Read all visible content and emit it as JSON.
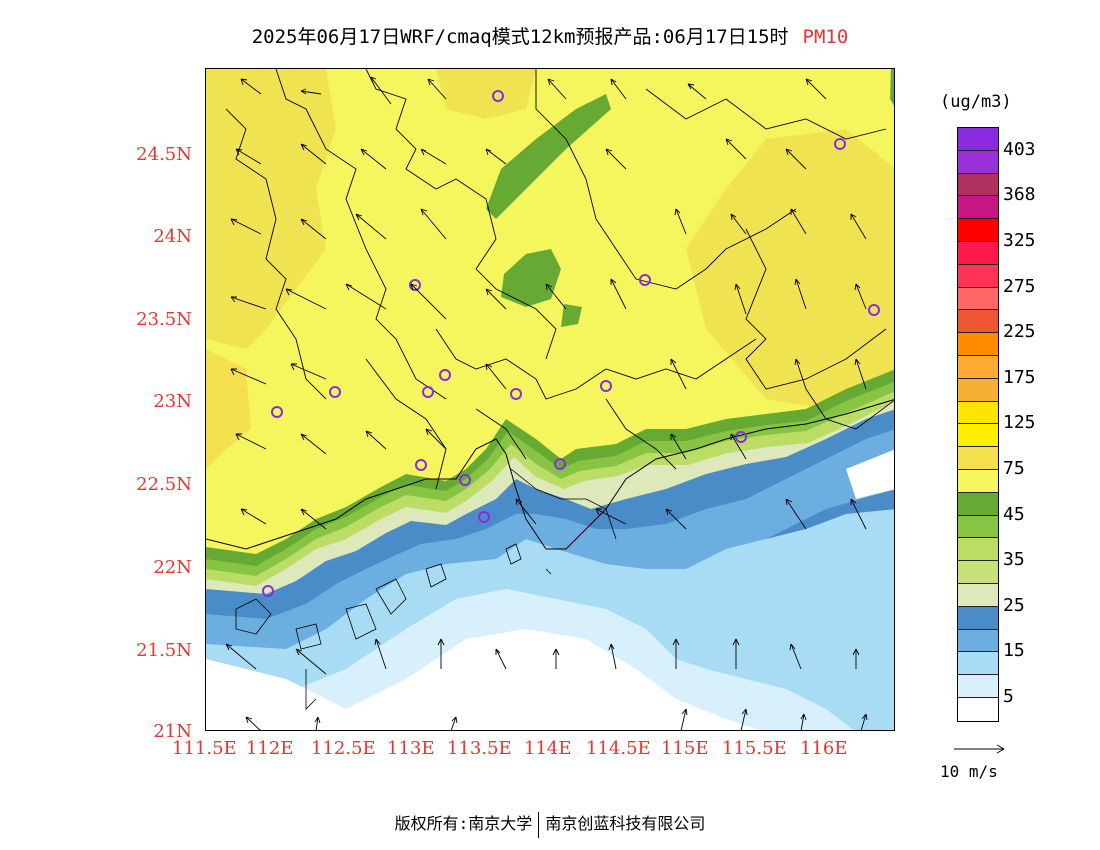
{
  "title": {
    "main": "2025年06月17日WRF/cmaq模式12km预报产品:06月17日15时",
    "variable": "PM10"
  },
  "lat_labels": [
    "24.5N",
    "24N",
    "23.5N",
    "23N",
    "22.5N",
    "22N",
    "21.5N",
    "21N"
  ],
  "lon_labels": [
    "111.5E",
    "112E",
    "112.5E",
    "113E",
    "113.5E",
    "114E",
    "114.5E",
    "115E",
    "115.5E",
    "116E"
  ],
  "legend": {
    "units": "(ug/m3)",
    "colors": [
      "#8a2be2",
      "#9b30d9",
      "#b03060",
      "#c71585",
      "#ff0000",
      "#ff1a4a",
      "#ff3355",
      "#ff6666",
      "#ee5533",
      "#ff8c00",
      "#ffaa33",
      "#f5b133",
      "#ffe400",
      "#ffee00",
      "#f4e04d",
      "#f5f55e",
      "#66aa33",
      "#88c444",
      "#bbdd66",
      "#c8e07a",
      "#dde9bb",
      "#4a8cc8",
      "#6caee0",
      "#a8dcf5",
      "#d8f0fb",
      "#ffffff"
    ],
    "labels": [
      "403",
      "368",
      "325",
      "275",
      "225",
      "175",
      "125",
      "75",
      "45",
      "35",
      "25",
      "15",
      "5"
    ]
  },
  "wind_reference": {
    "label": "10 m/s"
  },
  "footer": {
    "left": "版权所有:南京大学",
    "right": "南京创蓝科技有限公司"
  }
}
